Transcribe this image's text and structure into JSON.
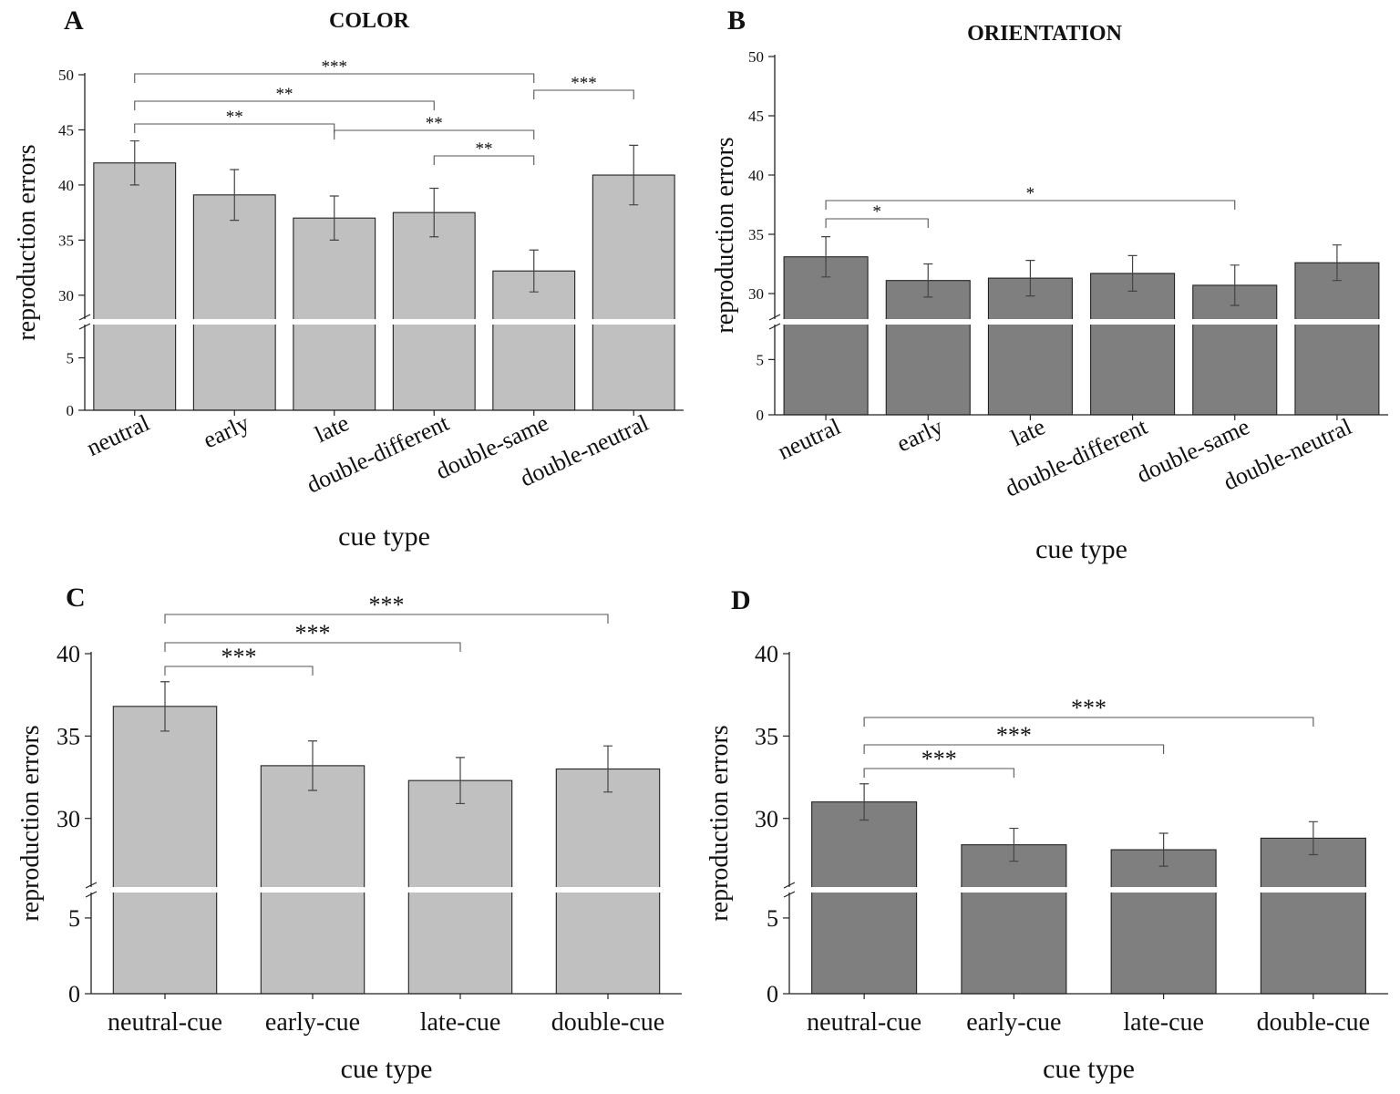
{
  "chart_data": [
    {
      "type": "bar",
      "panel_letter": "A",
      "title": "COLOR",
      "xlabel": "cue type",
      "ylabel": "reproduction errors",
      "categories": [
        "neutral",
        "early",
        "late",
        "double-different",
        "double-same",
        "double-neutral"
      ],
      "values": [
        42.0,
        39.1,
        37.0,
        37.5,
        32.2,
        40.9
      ],
      "errors": [
        2.0,
        2.3,
        2.0,
        2.2,
        1.9,
        2.7
      ],
      "upper_ticks": [
        30,
        35,
        40,
        45,
        50
      ],
      "lower_ticks": [
        0,
        5
      ],
      "ylim_upper": [
        28.0,
        50.0
      ],
      "ylim_lower": [
        0,
        8
      ],
      "axis_break": true,
      "bar_color": "#c0c0c0",
      "label_rotation": "angled",
      "significance": [
        {
          "from": 0,
          "to": 4,
          "label": "***"
        },
        {
          "from": 4,
          "to": 5,
          "label": "***"
        },
        {
          "from": 0,
          "to": 3,
          "label": "**"
        },
        {
          "from": 0,
          "to": 2,
          "label": "**"
        },
        {
          "from": 2,
          "to": 4,
          "label": "**"
        },
        {
          "from": 3,
          "to": 4,
          "label": "**"
        }
      ]
    },
    {
      "type": "bar",
      "panel_letter": "B",
      "title": "ORIENTATION",
      "xlabel": "cue type",
      "ylabel": "reproduction errors",
      "categories": [
        "neutral",
        "early",
        "late",
        "double-different",
        "double-same",
        "double-neutral"
      ],
      "values": [
        33.1,
        31.1,
        31.3,
        31.7,
        30.7,
        32.6
      ],
      "errors": [
        1.7,
        1.4,
        1.5,
        1.5,
        1.7,
        1.5
      ],
      "upper_ticks": [
        30,
        35,
        40,
        45,
        50
      ],
      "lower_ticks": [
        0,
        5
      ],
      "ylim_upper": [
        28.0,
        50.0
      ],
      "ylim_lower": [
        0,
        8
      ],
      "axis_break": true,
      "bar_color": "#7f7f7f",
      "label_rotation": "angled",
      "significance": [
        {
          "from": 0,
          "to": 4,
          "label": "*"
        },
        {
          "from": 0,
          "to": 1,
          "label": "*"
        }
      ]
    },
    {
      "type": "bar",
      "panel_letter": "C",
      "title": "",
      "xlabel": "cue type",
      "ylabel": "reproduction errors",
      "categories": [
        "neutral-cue",
        "early-cue",
        "late-cue",
        "double-cue"
      ],
      "values": [
        36.8,
        33.2,
        32.3,
        33.0
      ],
      "errors": [
        1.5,
        1.5,
        1.4,
        1.4
      ],
      "upper_ticks": [
        30,
        35,
        40
      ],
      "lower_ticks": [
        0,
        5
      ],
      "ylim_upper": [
        26.0,
        40.0
      ],
      "ylim_lower": [
        0,
        6.5
      ],
      "axis_break": true,
      "bar_color": "#c0c0c0",
      "label_rotation": "none",
      "significance": [
        {
          "from": 0,
          "to": 3,
          "label": "***"
        },
        {
          "from": 0,
          "to": 2,
          "label": "***"
        },
        {
          "from": 0,
          "to": 1,
          "label": "***"
        }
      ]
    },
    {
      "type": "bar",
      "panel_letter": "D",
      "title": "",
      "xlabel": "cue type",
      "ylabel": "reproduction errors",
      "categories": [
        "neutral-cue",
        "early-cue",
        "late-cue",
        "double-cue"
      ],
      "values": [
        31.0,
        28.4,
        28.1,
        28.8
      ],
      "errors": [
        1.1,
        1.0,
        1.0,
        1.0
      ],
      "upper_ticks": [
        30,
        35,
        40
      ],
      "lower_ticks": [
        0,
        5
      ],
      "ylim_upper": [
        26.0,
        40.0
      ],
      "ylim_lower": [
        0,
        6.5
      ],
      "axis_break": true,
      "bar_color": "#7f7f7f",
      "label_rotation": "none",
      "significance": [
        {
          "from": 0,
          "to": 3,
          "label": "***"
        },
        {
          "from": 0,
          "to": 2,
          "label": "***"
        },
        {
          "from": 0,
          "to": 1,
          "label": "***"
        }
      ]
    }
  ]
}
